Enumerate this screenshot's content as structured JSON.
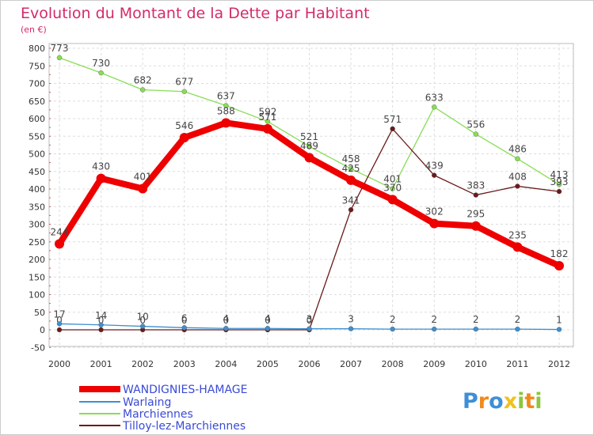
{
  "chart_data": {
    "type": "line",
    "title": "Evolution du Montant de la Dette par Habitant",
    "subtitle": "(en €)",
    "x": [
      "2000",
      "2001",
      "2002",
      "2003",
      "2004",
      "2005",
      "2006",
      "2007",
      "2008",
      "2009",
      "2010",
      "2011",
      "2012"
    ],
    "yticks": [
      -50,
      0,
      50,
      100,
      150,
      200,
      250,
      300,
      350,
      400,
      450,
      500,
      550,
      600,
      650,
      700,
      750,
      800
    ],
    "ylim": [
      -50,
      820
    ],
    "grid": true,
    "legend_position": "bottom-left",
    "series": [
      {
        "name": "WANDIGNIES-HAMAGE",
        "color": "#ee0000",
        "values": [
          244,
          430,
          401,
          546,
          588,
          571,
          489,
          425,
          370,
          302,
          295,
          235,
          182
        ]
      },
      {
        "name": "Warlaing",
        "color": "#3f8fcf",
        "values": [
          17,
          14,
          10,
          6,
          4,
          4,
          3,
          3,
          2,
          2,
          2,
          2,
          1
        ]
      },
      {
        "name": "Marchiennes",
        "color": "#88dd55",
        "values": [
          773,
          730,
          682,
          677,
          637,
          592,
          521,
          458,
          401,
          633,
          556,
          486,
          413
        ]
      },
      {
        "name": "Tilloy-lez-Marchiennes",
        "color": "#6b1a1a",
        "values": [
          0,
          0,
          0,
          0,
          0,
          0,
          0,
          341,
          571,
          439,
          383,
          408,
          393
        ]
      }
    ]
  },
  "logo": {
    "text": "Proxiti"
  }
}
